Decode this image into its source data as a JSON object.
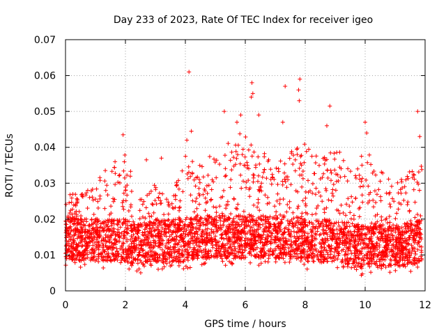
{
  "chart_data": {
    "type": "scatter",
    "title": "Day 233 of 2023, Rate Of TEC Index for receiver igeo",
    "xlabel": "GPS time / hours",
    "ylabel": "ROTI / TECUs",
    "xlim": [
      0,
      12
    ],
    "ylim": [
      0,
      0.07
    ],
    "x_ticks": [
      0,
      2,
      4,
      6,
      8,
      10,
      12
    ],
    "y_ticks": [
      0,
      0.01,
      0.02,
      0.03,
      0.04,
      0.05,
      0.06,
      0.07
    ],
    "x_tick_labels": [
      "0",
      "2",
      "4",
      "6",
      "8",
      "10",
      "12"
    ],
    "y_tick_labels": [
      "0",
      "0.01",
      "0.02",
      "0.03",
      "0.04",
      "0.05",
      "0.06",
      "0.07"
    ],
    "grid": true,
    "marker": "plus",
    "color": "#ff0000",
    "series": [
      {
        "name": "ROTI",
        "envelope": {
          "x": [
            0.0,
            0.5,
            1.0,
            1.5,
            2.0,
            2.5,
            3.0,
            3.5,
            4.0,
            4.5,
            5.0,
            5.5,
            6.0,
            6.5,
            7.0,
            7.5,
            8.0,
            8.5,
            9.0,
            9.5,
            10.0,
            10.5,
            11.0,
            11.5,
            12.0
          ],
          "low": [
            0.007,
            0.006,
            0.006,
            0.006,
            0.006,
            0.005,
            0.006,
            0.006,
            0.006,
            0.007,
            0.007,
            0.007,
            0.007,
            0.007,
            0.007,
            0.007,
            0.006,
            0.006,
            0.006,
            0.005,
            0.004,
            0.005,
            0.005,
            0.005,
            0.006
          ],
          "high": [
            0.027,
            0.027,
            0.03,
            0.036,
            0.038,
            0.026,
            0.03,
            0.025,
            0.038,
            0.036,
            0.04,
            0.042,
            0.046,
            0.04,
            0.036,
            0.04,
            0.042,
            0.036,
            0.042,
            0.034,
            0.04,
            0.034,
            0.03,
            0.034,
            0.036
          ]
        },
        "highlights": [
          {
            "x": 4.12,
            "y": 0.061
          },
          {
            "x": 6.22,
            "y": 0.058
          },
          {
            "x": 7.82,
            "y": 0.059
          },
          {
            "x": 7.33,
            "y": 0.057
          },
          {
            "x": 7.78,
            "y": 0.056
          },
          {
            "x": 6.25,
            "y": 0.055
          },
          {
            "x": 6.2,
            "y": 0.054
          },
          {
            "x": 7.8,
            "y": 0.053
          },
          {
            "x": 8.82,
            "y": 0.0515
          },
          {
            "x": 5.3,
            "y": 0.05
          },
          {
            "x": 11.75,
            "y": 0.05
          },
          {
            "x": 5.85,
            "y": 0.049
          },
          {
            "x": 6.45,
            "y": 0.049
          },
          {
            "x": 10.0,
            "y": 0.047
          },
          {
            "x": 5.72,
            "y": 0.047
          },
          {
            "x": 7.25,
            "y": 0.047
          },
          {
            "x": 8.72,
            "y": 0.046
          },
          {
            "x": 4.2,
            "y": 0.0445
          },
          {
            "x": 1.92,
            "y": 0.0435
          },
          {
            "x": 10.05,
            "y": 0.044
          },
          {
            "x": 4.05,
            "y": 0.042
          },
          {
            "x": 11.82,
            "y": 0.043
          },
          {
            "x": 3.2,
            "y": 0.037
          },
          {
            "x": 2.7,
            "y": 0.0365
          }
        ]
      }
    ]
  }
}
